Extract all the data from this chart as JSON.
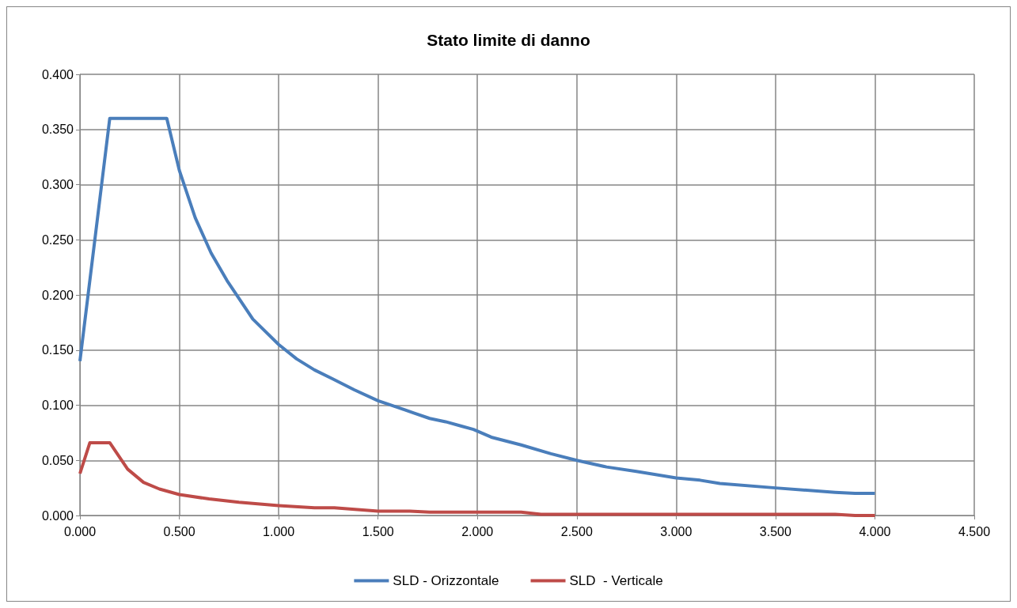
{
  "chart_data": {
    "type": "line",
    "title": "Stato limite di danno",
    "xlim": [
      0,
      4.5
    ],
    "xticks": [
      {
        "value": 0,
        "label": "0.000"
      },
      {
        "value": 0.5,
        "label": "0.500"
      },
      {
        "value": 1,
        "label": "1.000"
      },
      {
        "value": 1.5,
        "label": "1.500"
      },
      {
        "value": 2,
        "label": "2.000"
      },
      {
        "value": 2.5,
        "label": "2.500"
      },
      {
        "value": 3,
        "label": "3.000"
      },
      {
        "value": 3.5,
        "label": "3.500"
      },
      {
        "value": 4,
        "label": "4.000"
      },
      {
        "value": 4.5,
        "label": "4.500"
      }
    ],
    "ylim": [
      0,
      0.4
    ],
    "yticks": [
      {
        "value": 0,
        "label": "0.000"
      },
      {
        "value": 0.05,
        "label": "0.050"
      },
      {
        "value": 0.1,
        "label": "0.100"
      },
      {
        "value": 0.15,
        "label": "0.150"
      },
      {
        "value": 0.2,
        "label": "0.200"
      },
      {
        "value": 0.25,
        "label": "0.250"
      },
      {
        "value": 0.3,
        "label": "0.300"
      },
      {
        "value": 0.35,
        "label": "0.350"
      },
      {
        "value": 0.4,
        "label": "0.400"
      }
    ],
    "grid": true,
    "legend": "bottom",
    "marker": "none",
    "line_style": "solid",
    "series": [
      {
        "name": "SLD - Orizzontale",
        "color": "#4a7ebb",
        "x": [
          0,
          0.15,
          0.437,
          0.5,
          0.58,
          0.66,
          0.74,
          0.87,
          1.0,
          1.09,
          1.18,
          1.27,
          1.38,
          1.5,
          1.6,
          1.68,
          1.76,
          1.84,
          1.92,
          1.98,
          2.07,
          2.22,
          2.37,
          2.5,
          2.65,
          2.8,
          3.0,
          3.12,
          3.22,
          3.5,
          3.8,
          3.9,
          4.0
        ],
        "values": [
          0.14,
          0.36,
          0.36,
          0.313,
          0.27,
          0.238,
          0.213,
          0.178,
          0.155,
          0.142,
          0.132,
          0.124,
          0.114,
          0.104,
          0.098,
          0.093,
          0.088,
          0.085,
          0.081,
          0.078,
          0.071,
          0.064,
          0.056,
          0.05,
          0.044,
          0.04,
          0.034,
          0.032,
          0.029,
          0.025,
          0.021,
          0.02,
          0.02
        ]
      },
      {
        "name": "SLD  - Verticale",
        "color": "#be4b48",
        "x": [
          0,
          0.05,
          0.15,
          0.24,
          0.32,
          0.4,
          0.5,
          0.65,
          0.8,
          1.0,
          1.18,
          1.28,
          1.5,
          1.66,
          1.76,
          2.22,
          2.32,
          3.8,
          3.9,
          4.0
        ],
        "values": [
          0.038,
          0.066,
          0.066,
          0.042,
          0.03,
          0.024,
          0.019,
          0.015,
          0.012,
          0.009,
          0.007,
          0.007,
          0.004,
          0.004,
          0.003,
          0.003,
          0.001,
          0.001,
          0,
          0
        ]
      }
    ]
  }
}
